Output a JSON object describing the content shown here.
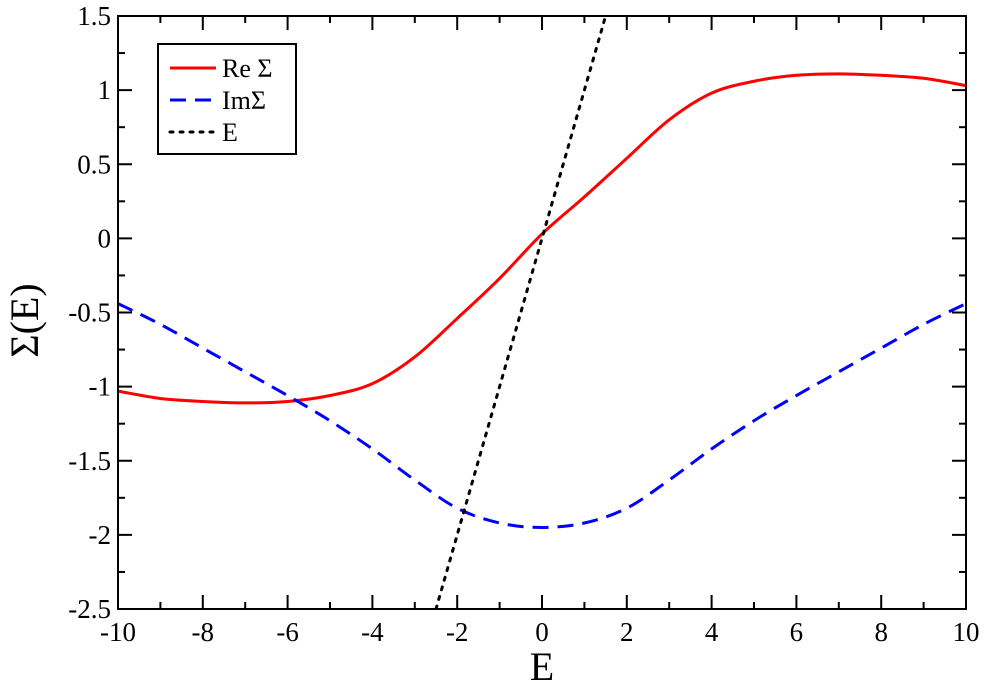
{
  "chart_data": {
    "type": "line",
    "title": "",
    "xlabel": "E",
    "ylabel": "Σ(E)",
    "xlim": [
      -10,
      10
    ],
    "ylim": [
      -2.5,
      1.5
    ],
    "xticks": [
      -10,
      -8,
      -6,
      -4,
      -2,
      0,
      2,
      4,
      6,
      8,
      10
    ],
    "xtick_labels": [
      "-10",
      "-8",
      "-6",
      "-4",
      "-2",
      "0",
      "2",
      "4",
      "6",
      "8",
      "10"
    ],
    "yticks": [
      -2.5,
      -2,
      -1.5,
      -1,
      -0.5,
      0,
      0.5,
      1,
      1.5
    ],
    "ytick_labels": [
      "-2.5",
      "-2",
      "-1.5",
      "-1",
      "-0.5",
      "0",
      "0.5",
      "1",
      "1.5"
    ],
    "grid": false,
    "legend_position": "top-left",
    "series": [
      {
        "name": "Re Σ",
        "color": "#ff0000",
        "style": "solid",
        "x": [
          -10,
          -9,
          -8,
          -7,
          -6,
          -5,
          -4,
          -3,
          -2,
          -1,
          0,
          1,
          2,
          3,
          4,
          5,
          6,
          7,
          8,
          9,
          10
        ],
        "y": [
          -1.03,
          -1.08,
          -1.1,
          -1.11,
          -1.1,
          -1.06,
          -0.98,
          -0.8,
          -0.54,
          -0.27,
          0.03,
          0.28,
          0.54,
          0.8,
          0.98,
          1.06,
          1.1,
          1.11,
          1.1,
          1.08,
          1.03
        ]
      },
      {
        "name": "ImΣ",
        "color": "#0000ff",
        "style": "dashed",
        "x": [
          -10,
          -9,
          -8,
          -7,
          -6,
          -5,
          -4,
          -3,
          -2,
          -1,
          0,
          1,
          2,
          3,
          4,
          5,
          6,
          7,
          8,
          9,
          10
        ],
        "y": [
          -0.44,
          -0.58,
          -0.74,
          -0.9,
          -1.06,
          -1.23,
          -1.42,
          -1.63,
          -1.82,
          -1.92,
          -1.95,
          -1.92,
          -1.82,
          -1.63,
          -1.42,
          -1.23,
          -1.06,
          -0.9,
          -0.74,
          -0.58,
          -0.44
        ]
      },
      {
        "name": "E",
        "color": "#000000",
        "style": "dotted",
        "x": [
          -2.5,
          1.5
        ],
        "y": [
          -2.5,
          1.5
        ]
      }
    ]
  }
}
